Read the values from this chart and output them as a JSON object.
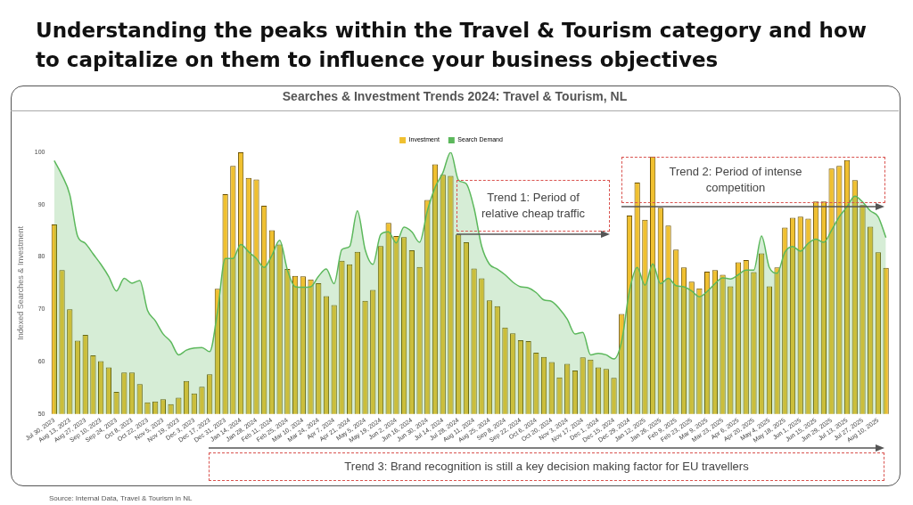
{
  "chart_data": {
    "type": "bar",
    "title": "Understanding the peaks within the Travel & Tourism category and how to capitalize on them to influence your business objectives",
    "subtitle": "Searches & Investment Trends 2024: Travel & Tourism, NL",
    "ylabel": "Indexed Searches & Investment",
    "categories": [
      "Jul 30, 2023",
      null,
      "Aug 13, 2023",
      null,
      "Aug 27, 2023",
      null,
      "Sep 10, 2023",
      null,
      "Sep 24, 2023",
      null,
      "Oct 8, 2023",
      null,
      "Oct 22, 2023",
      null,
      "Nov 5, 2023",
      null,
      "Nov 19, 2023",
      null,
      "Dec 3, 2023",
      null,
      "Dec 17, 2023",
      null,
      "Dec 31, 2023",
      null,
      "Jan 14, 2024",
      null,
      "Jan 28, 2024",
      null,
      "Feb 11, 2024",
      null,
      "Feb 25, 2024",
      null,
      "Mar 10, 2024",
      null,
      "Mar 24, 2024",
      null,
      "Apr 7, 2024",
      null,
      "Apr 21, 2024",
      null,
      "May 5, 2024",
      null,
      "May 19, 2024",
      null,
      "Jun 2, 2024",
      null,
      "Jun 16, 2024",
      null,
      "Jun 30, 2024",
      null,
      "Jul 14, 2024",
      null,
      "Jul 28, 2024",
      null,
      "Aug 11, 2024",
      null,
      "Aug 25, 2024",
      null,
      "Sep 8, 2024",
      null,
      "Sep 22, 2024",
      null,
      "Oct 6, 2024",
      null,
      "Oct 20, 2024",
      null,
      "Nov 3, 2024",
      null,
      "Nov 17, 2024",
      null,
      "Dec 1, 2024",
      null,
      "Dec 15, 2024",
      null,
      "Dec 29, 2024",
      null,
      "Jan 12, 2025",
      null,
      "Jan 26, 2025",
      null,
      "Feb 9, 2025",
      null,
      "Feb 23, 2025",
      null,
      "Mar 9, 2025",
      null,
      "Mar 23, 2025",
      null,
      "Apr 6, 2025",
      null,
      "Apr 20, 2025",
      null,
      "May 4, 2025",
      null,
      "May 18, 2025",
      null,
      "Jun 1, 2025",
      null,
      "Jun 15, 2025",
      null,
      "Jun 29, 2025",
      null,
      "Jul 13, 2025",
      null,
      "Jul 27, 2025",
      null,
      "Aug 10, 2025",
      null
    ],
    "series": [
      {
        "name": "Investment",
        "type": "bar",
        "color": "#f0c030",
        "values": [
          86.2,
          77.5,
          70.0,
          64.0,
          65.1,
          61.2,
          60.1,
          58.9,
          54.2,
          57.9,
          57.9,
          55.7,
          52.2,
          52.4,
          52.8,
          51.9,
          53.1,
          56.3,
          53.9,
          55.2,
          57.6,
          73.9,
          92.0,
          97.4,
          100,
          95.1,
          94.8,
          89.8,
          85.1,
          82.4,
          77.7,
          76.4,
          76.3,
          75.7,
          75.0,
          72.5,
          70.8,
          79.3,
          78.6,
          81.0,
          71.6,
          73.7,
          82.1,
          86.5,
          84.0,
          83.8,
          81.3,
          78.1,
          90.9,
          97.7,
          95.7,
          95.5,
          84.3,
          82.8,
          77.8,
          75.9,
          71.7,
          70.6,
          66.5,
          65.4,
          64.1,
          63.9,
          61.7,
          60.9,
          59.9,
          57.0,
          59.6,
          58.3,
          60.8,
          60.4,
          58.9,
          58.6,
          56.9,
          69.1,
          87.9,
          94.2,
          87.1,
          99.2,
          89.4,
          86.0,
          81.4,
          78.0,
          75.3,
          74.0,
          77.2,
          77.5,
          76.6,
          74.4,
          79.0,
          79.4,
          77.1,
          80.7,
          74.4,
          78.0,
          85.6,
          87.5,
          87.7,
          87.3,
          90.6,
          90.6,
          96.9,
          97.4,
          98.5,
          94.7,
          89.9,
          85.8,
          80.9,
          77.9
        ]
      },
      {
        "name": "Search Demand",
        "type": "area",
        "color": "#5cb85c",
        "values": [
          98.4,
          95.6,
          91.9,
          84.0,
          82.6,
          80.6,
          78.6,
          76.3,
          73.5,
          75.9,
          75.0,
          75.5,
          69.8,
          67.8,
          65.3,
          63.8,
          61.3,
          62.2,
          62.6,
          62.7,
          61.9,
          69.5,
          79.7,
          79.7,
          82.4,
          81.0,
          79.7,
          78.0,
          80.3,
          83.2,
          77.5,
          74.3,
          74.2,
          74.3,
          76.3,
          77.7,
          74.9,
          81.4,
          82.0,
          88.8,
          81.4,
          78.6,
          84.3,
          84.8,
          82.7,
          85.7,
          84.8,
          82.8,
          88.8,
          93.3,
          96.1,
          100,
          94.7,
          94.0,
          89.4,
          82.0,
          78.6,
          77.7,
          76.6,
          75.2,
          74.3,
          74.1,
          73.2,
          71.8,
          71.5,
          70.1,
          68.1,
          65.3,
          65.6,
          61.3,
          61.6,
          61.3,
          60.5,
          63.9,
          73.5,
          78.0,
          74.6,
          78.7,
          74.9,
          75.9,
          74.5,
          74.3,
          73.5,
          72.4,
          73.4,
          74.9,
          76.0,
          75.8,
          76.6,
          77.5,
          77.5,
          84.0,
          78.0,
          76.9,
          80.9,
          82.0,
          81.1,
          82.6,
          83.4,
          82.8,
          85.1,
          87.7,
          89.6,
          91.6,
          90.5,
          88.8,
          87.7,
          83.7
        ]
      }
    ],
    "ylim": [
      50,
      100
    ],
    "yticks": [
      50,
      60,
      70,
      80,
      90,
      100
    ],
    "grid": false,
    "legend": "top",
    "annotations": [
      "Trend 1: Period of relative cheap traffic",
      "Trend 2: Period of intense competition",
      "Trend 3: Brand recognition is still a key decision making factor for EU travellers",
      "Source: Internal Data, Travel & Tourism in NL"
    ]
  }
}
